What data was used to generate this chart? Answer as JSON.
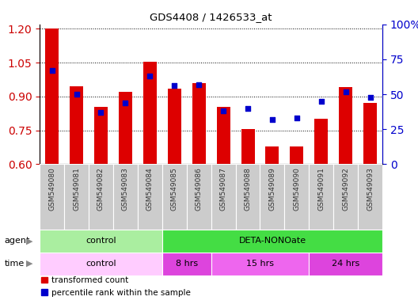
{
  "title": "GDS4408 / 1426533_at",
  "samples": [
    "GSM549080",
    "GSM549081",
    "GSM549082",
    "GSM549083",
    "GSM549084",
    "GSM549085",
    "GSM549086",
    "GSM549087",
    "GSM549088",
    "GSM549089",
    "GSM549090",
    "GSM549091",
    "GSM549092",
    "GSM549093"
  ],
  "transformed_count": [
    1.2,
    0.945,
    0.855,
    0.92,
    1.055,
    0.935,
    0.96,
    0.855,
    0.755,
    0.68,
    0.68,
    0.8,
    0.94,
    0.87
  ],
  "percentile_rank": [
    67,
    50,
    37,
    44,
    63,
    56,
    57,
    38,
    40,
    32,
    33,
    45,
    52,
    48
  ],
  "ylim_left": [
    0.6,
    1.22
  ],
  "ylim_right": [
    0,
    100
  ],
  "yticks_left": [
    0.6,
    0.75,
    0.9,
    1.05,
    1.2
  ],
  "yticks_right": [
    0,
    25,
    50,
    75,
    100
  ],
  "bar_color": "#dd0000",
  "dot_color": "#0000cc",
  "bar_bottom": 0.6,
  "agent_groups": [
    {
      "label": "control",
      "start": 0,
      "end": 5,
      "color": "#aaeea0"
    },
    {
      "label": "DETA-NONOate",
      "start": 5,
      "end": 14,
      "color": "#44dd44"
    }
  ],
  "time_groups": [
    {
      "label": "control",
      "start": 0,
      "end": 5,
      "color": "#ffccff"
    },
    {
      "label": "8 hrs",
      "start": 5,
      "end": 7,
      "color": "#dd44dd"
    },
    {
      "label": "15 hrs",
      "start": 7,
      "end": 11,
      "color": "#ee66ee"
    },
    {
      "label": "24 hrs",
      "start": 11,
      "end": 14,
      "color": "#dd44dd"
    }
  ],
  "legend_bar_label": "transformed count",
  "legend_dot_label": "percentile rank within the sample",
  "tick_label_color": "#cc0000",
  "right_tick_color": "#0000cc",
  "sample_label_bg": "#cccccc",
  "sample_label_color": "#333333"
}
